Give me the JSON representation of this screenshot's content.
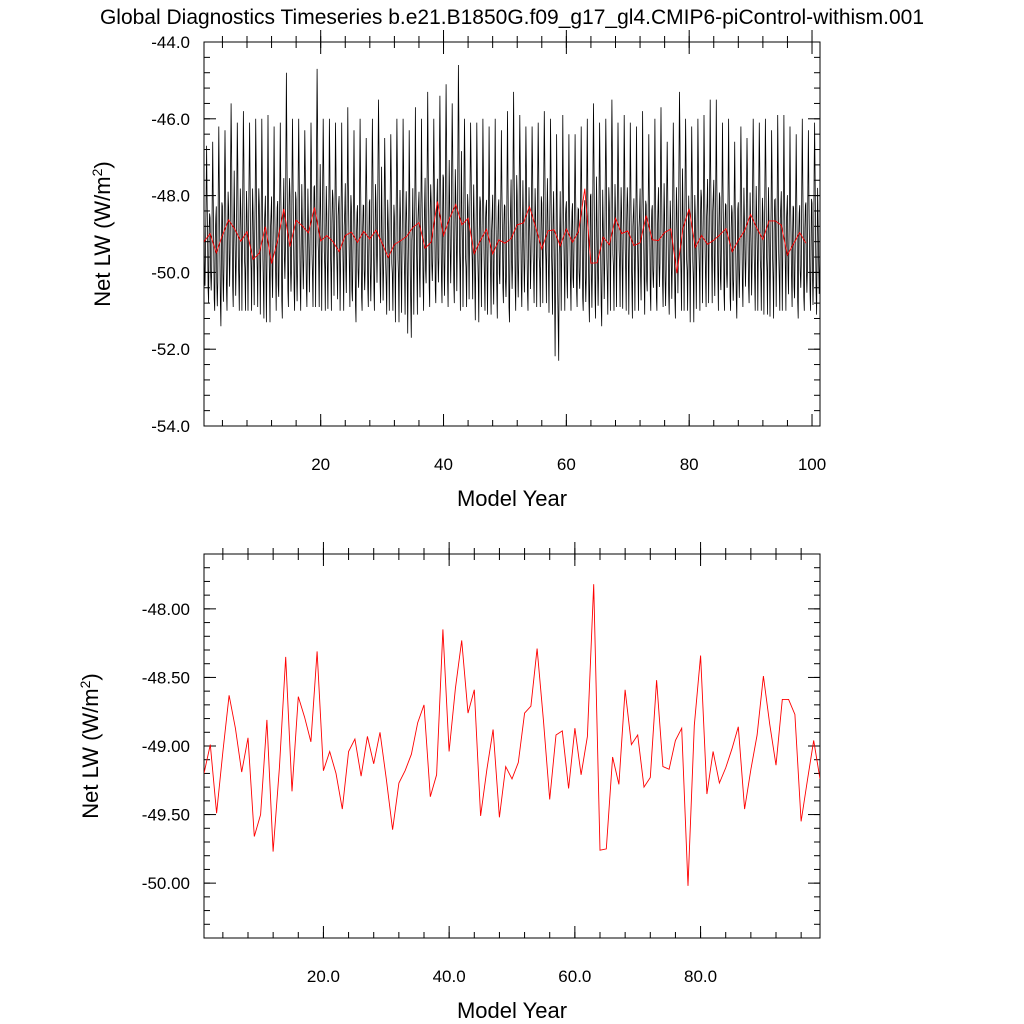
{
  "title": "Global Diagnostics Timeseries b.e21.B1850G.f09_g17_gl4.CMIP6-piControl-withism.001",
  "colors": {
    "monthly": "#000000",
    "annual": "#ff0000",
    "background": "#ffffff"
  },
  "chart_data": [
    {
      "type": "line",
      "xlabel": "Model Year",
      "ylabel": "Net LW (W/m2)",
      "ylabel_main": "Net LW (W/m",
      "ylabel_sup": "2",
      "ylabel_close": ")",
      "xlim": [
        1,
        101.3
      ],
      "ylim": [
        -54,
        -44
      ],
      "xticks": [
        20,
        40,
        60,
        80,
        100
      ],
      "xtick_labels": [
        "20",
        "40",
        "60",
        "80",
        "100"
      ],
      "yticks": [
        -54,
        -52,
        -50,
        -48,
        -46,
        -44
      ],
      "ytick_labels": [
        "-54.0",
        "-52.0",
        "-50.0",
        "-48.0",
        "-46.0",
        "-44.0"
      ],
      "grid": false,
      "series": [
        {
          "style": "monthly",
          "note_values": "monthly mean values, 12 per year",
          "years": [
            1,
            101
          ],
          "annual_maxima": [
            -46.7,
            -46.6,
            -46.2,
            -46.3,
            -45.6,
            -46.1,
            -45.8,
            -46.1,
            -46.0,
            -46.0,
            -45.9,
            -46.2,
            -46.1,
            -44.8,
            -46.0,
            -46.0,
            -46.3,
            -46.1,
            -44.7,
            -46.0,
            -46.0,
            -46.1,
            -46.1,
            -45.7,
            -46.3,
            -46.0,
            -46.5,
            -46.0,
            -45.5,
            -46.5,
            -46.4,
            -46.0,
            -46.0,
            -46.3,
            -45.7,
            -46.0,
            -45.3,
            -46.0,
            -45.4,
            -45.1,
            -45.6,
            -44.6,
            -46.0,
            -46.1,
            -46.1,
            -46.0,
            -46.2,
            -46.0,
            -46.3,
            -45.8,
            -45.3,
            -45.9,
            -46.2,
            -46.2,
            -46.1,
            -45.8,
            -46.0,
            -46.4,
            -45.9,
            -46.4,
            -46.4,
            -46.2,
            -46.0,
            -45.6,
            -46.1,
            -46.0,
            -45.5,
            -46.1,
            -45.9,
            -46.1,
            -46.2,
            -45.8,
            -46.4,
            -46.0,
            -45.7,
            -46.6,
            -46.1,
            -45.3,
            -46.0,
            -46.2,
            -46.0,
            -45.9,
            -45.5,
            -45.5,
            -46.1,
            -46.0,
            -46.6,
            -46.2,
            -46.5,
            -46.0,
            -46.1,
            -46.0,
            -46.3,
            -45.9,
            -45.9,
            -46.2,
            -46.4,
            -46.0,
            -46.3,
            -46.1,
            -46.6
          ],
          "annual_minima": [
            -50.8,
            -51.0,
            -51.4,
            -51.0,
            -50.9,
            -51.0,
            -51.0,
            -51.0,
            -50.9,
            -51.2,
            -51.3,
            -51.0,
            -51.2,
            -50.9,
            -51.0,
            -51.0,
            -50.9,
            -50.9,
            -50.9,
            -51.0,
            -51.0,
            -50.7,
            -51.0,
            -50.9,
            -51.3,
            -51.0,
            -50.9,
            -51.0,
            -50.8,
            -51.1,
            -51.0,
            -51.3,
            -51.1,
            -51.7,
            -51.1,
            -51.0,
            -50.9,
            -50.8,
            -50.8,
            -50.9,
            -50.8,
            -51.0,
            -50.9,
            -50.7,
            -51.3,
            -51.0,
            -51.1,
            -51.2,
            -50.8,
            -51.3,
            -51.0,
            -50.9,
            -51.0,
            -50.8,
            -50.9,
            -50.8,
            -51.1,
            -52.3,
            -51.0,
            -51.0,
            -50.9,
            -51.0,
            -51.3,
            -51.2,
            -51.4,
            -51.1,
            -51.0,
            -50.9,
            -51.0,
            -51.2,
            -51.0,
            -51.1,
            -51.0,
            -51.0,
            -50.9,
            -51.1,
            -51.2,
            -51.0,
            -51.0,
            -51.3,
            -51.0,
            -50.9,
            -50.8,
            -51.0,
            -51.0,
            -51.0,
            -51.2,
            -50.9,
            -50.8,
            -51.0,
            -51.0,
            -51.1,
            -51.2,
            -51.0,
            -51.0,
            -50.9,
            -51.2,
            -51.0,
            -51.0,
            -51.1,
            -51.0
          ]
        },
        {
          "style": "annual",
          "note_values": "annual mean values, same as lower panel",
          "x_start": 1
        }
      ]
    },
    {
      "type": "line",
      "xlabel": "Model Year",
      "ylabel": "Net LW (W/m2)",
      "ylabel_main": "Net LW (W/m",
      "ylabel_sup": "2",
      "ylabel_close": ")",
      "xlim": [
        1,
        99
      ],
      "ylim": [
        -50.4,
        -47.6
      ],
      "xticks": [
        20,
        40,
        60,
        80
      ],
      "xtick_labels": [
        "20.0",
        "40.0",
        "60.0",
        "80.0"
      ],
      "yticks": [
        -50.0,
        -49.5,
        -49.0,
        -48.5,
        -48.0
      ],
      "ytick_labels": [
        "-50.00",
        "-49.50",
        "-49.00",
        "-48.50",
        "-48.00"
      ],
      "grid": false,
      "series": [
        {
          "style": "annual",
          "x_start": 1,
          "values": [
            -49.2,
            -48.99,
            -49.49,
            -49.04,
            -48.63,
            -48.87,
            -49.19,
            -48.94,
            -49.66,
            -49.5,
            -48.81,
            -49.77,
            -49.16,
            -48.35,
            -49.33,
            -48.64,
            -48.79,
            -48.97,
            -48.31,
            -49.18,
            -49.04,
            -49.2,
            -49.46,
            -49.04,
            -48.95,
            -49.22,
            -48.93,
            -49.13,
            -48.9,
            -49.24,
            -49.61,
            -49.27,
            -49.18,
            -49.06,
            -48.83,
            -48.7,
            -49.37,
            -49.21,
            -48.15,
            -49.04,
            -48.58,
            -48.23,
            -48.76,
            -48.59,
            -49.51,
            -49.17,
            -48.88,
            -49.52,
            -49.15,
            -49.24,
            -49.12,
            -48.76,
            -48.71,
            -48.29,
            -48.81,
            -49.39,
            -48.92,
            -48.89,
            -49.31,
            -48.87,
            -49.21,
            -48.93,
            -47.82,
            -49.76,
            -49.75,
            -49.08,
            -49.28,
            -48.59,
            -48.99,
            -48.92,
            -49.3,
            -49.23,
            -48.52,
            -49.15,
            -49.17,
            -48.96,
            -48.87,
            -50.02,
            -48.85,
            -48.34,
            -49.35,
            -49.04,
            -49.27,
            -49.16,
            -49.02,
            -48.86,
            -49.46,
            -49.17,
            -48.92,
            -48.49,
            -48.84,
            -49.14,
            -48.66,
            -48.66,
            -48.77,
            -49.55,
            -49.25,
            -48.96,
            -49.24
          ]
        }
      ]
    }
  ]
}
